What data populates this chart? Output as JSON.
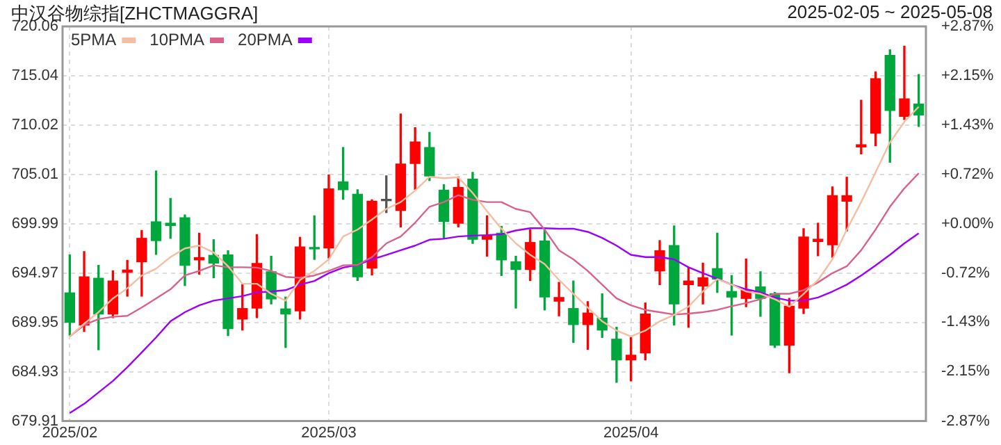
{
  "chart_data": {
    "type": "candlestick",
    "title": "中汉谷物综指[ZHCTMAGGRA]",
    "subtitle": "2025-02-05 ~ 2025-05-08",
    "categories": [
      "2025/02",
      null,
      null,
      null,
      null,
      null,
      null,
      null,
      null,
      null,
      null,
      null,
      null,
      null,
      null,
      null,
      null,
      null,
      "2025/03",
      null,
      null,
      null,
      null,
      null,
      null,
      null,
      null,
      null,
      null,
      null,
      null,
      null,
      null,
      null,
      null,
      null,
      null,
      null,
      null,
      "2025/04",
      null,
      null,
      null,
      null,
      null,
      null,
      null,
      null,
      null,
      null,
      null,
      null,
      null,
      null,
      null,
      null,
      null,
      null,
      null,
      null
    ],
    "ohlc": [
      [
        692.95,
        696.82,
        688.66,
        689.96
      ],
      [
        689.68,
        697.15,
        689.03,
        694.58
      ],
      [
        694.44,
        695.75,
        687.17,
        690.8
      ],
      [
        690.8,
        695.19,
        690.43,
        694.16
      ],
      [
        695.05,
        696.26,
        692.62,
        695.28
      ],
      [
        696.12,
        699.3,
        692.62,
        698.5
      ],
      [
        700.18,
        705.36,
        696.87,
        698.27
      ],
      [
        700.04,
        702.56,
        698.5,
        699.81
      ],
      [
        700.6,
        700.88,
        693.7,
        695.75
      ],
      [
        696.31,
        699.02,
        694.86,
        696.54
      ],
      [
        696.77,
        698.36,
        694.49,
        695.98
      ],
      [
        696.82,
        697.24,
        688.61,
        689.31
      ],
      [
        690.29,
        693.79,
        689.17,
        691.36
      ],
      [
        691.41,
        698.88,
        690.43,
        695.94
      ],
      [
        695.1,
        696.68,
        691.83,
        692.34
      ],
      [
        691.32,
        692.53,
        687.4,
        690.8
      ],
      [
        691.13,
        698.6,
        690.29,
        697.62
      ],
      [
        697.57,
        700.79,
        696.36,
        697.43
      ],
      [
        697.52,
        704.94,
        696.5,
        703.54
      ],
      [
        704.24,
        707.74,
        702.47,
        703.45
      ],
      [
        702.98,
        703.45,
        694.21,
        694.58
      ],
      [
        695.47,
        702.42,
        694.77,
        702.28
      ],
      [
        702.33,
        704.85,
        701.12,
        702.33
      ],
      [
        701.35,
        711.15,
        699.67,
        706.06
      ],
      [
        706.11,
        709.75,
        703.5,
        708.3
      ],
      [
        707.74,
        709.28,
        704.38,
        704.85
      ],
      [
        703.4,
        703.96,
        698.46,
        700.23
      ],
      [
        700.04,
        704.76,
        699.67,
        703.68
      ],
      [
        704.52,
        705.22,
        697.99,
        698.41
      ],
      [
        698.41,
        700.79,
        696.68,
        698.78
      ],
      [
        699.02,
        699.72,
        694.72,
        696.31
      ],
      [
        696.12,
        696.68,
        691.41,
        695.33
      ],
      [
        695.33,
        699.39,
        694.21,
        698.08
      ],
      [
        698.22,
        699.53,
        691.22,
        692.53
      ],
      [
        692.11,
        694.02,
        690.62,
        692.48
      ],
      [
        691.36,
        694.16,
        687.91,
        689.73
      ],
      [
        689.73,
        692.06,
        687.21,
        690.9
      ],
      [
        690.38,
        692.86,
        688.42,
        689.17
      ],
      [
        688.24,
        689.45,
        683.85,
        686.14
      ],
      [
        686.14,
        688.42,
        683.99,
        686.61
      ],
      [
        686.84,
        691.92,
        686.14,
        690.8
      ],
      [
        695.19,
        698.27,
        693.79,
        697.24
      ],
      [
        697.76,
        699.76,
        689.68,
        691.83
      ],
      [
        693.79,
        695.52,
        689.45,
        694.16
      ],
      [
        693.65,
        695.98,
        691.83,
        694.49
      ],
      [
        695.42,
        699.02,
        693.0,
        694.35
      ],
      [
        693.09,
        694.72,
        688.66,
        692.53
      ],
      [
        692.39,
        696.4,
        691.55,
        693.23
      ],
      [
        693.56,
        695.1,
        690.57,
        692.39
      ],
      [
        692.86,
        693.0,
        687.4,
        687.63
      ],
      [
        687.63,
        692.39,
        684.83,
        691.6
      ],
      [
        691.41,
        699.48,
        690.85,
        698.64
      ],
      [
        698.18,
        700.04,
        696.73,
        698.41
      ],
      [
        697.85,
        703.73,
        696.59,
        702.84
      ],
      [
        702.28,
        704.71,
        699.25,
        702.84
      ],
      [
        707.79,
        712.55,
        707.09,
        708.02
      ],
      [
        709.19,
        715.44,
        707.93,
        714.74
      ],
      [
        717.12,
        717.68,
        706.25,
        711.52
      ],
      [
        710.91,
        718.05,
        710.59,
        712.69
      ],
      [
        712.17,
        715.16,
        709.89,
        711.05
      ]
    ],
    "colors": [
      "#00a73c",
      "#ff0000",
      "#00a73c",
      "#ff0000",
      "#ff0000",
      "#ff0000",
      "#00a73c",
      "#00a73c",
      "#00a73c",
      "#ff0000",
      "#00a73c",
      "#00a73c",
      "#ff0000",
      "#ff0000",
      "#00a73c",
      "#00a73c",
      "#ff0000",
      "#00a73c",
      "#ff0000",
      "#00a73c",
      "#00a73c",
      "#ff0000",
      "#555555",
      "#ff0000",
      "#ff0000",
      "#00a73c",
      "#00a73c",
      "#ff0000",
      "#00a73c",
      "#ff0000",
      "#00a73c",
      "#00a73c",
      "#ff0000",
      "#00a73c",
      "#ff0000",
      "#00a73c",
      "#ff0000",
      "#00a73c",
      "#00a73c",
      "#ff0000",
      "#ff0000",
      "#ff0000",
      "#00a73c",
      "#ff0000",
      "#ff0000",
      "#00a73c",
      "#00a73c",
      "#ff0000",
      "#00a73c",
      "#00a73c",
      "#ff0000",
      "#ff0000",
      "#ff0000",
      "#ff0000",
      "#ff0000",
      "#ff0000",
      "#ff0000",
      "#00a73c",
      "#ff0000",
      "#00a73c"
    ],
    "series": [
      {
        "type": "line",
        "name": "5PMA",
        "color": "#f5bea0",
        "values": [
          688.52,
          689.82,
          690.99,
          692.39,
          693.42,
          694.72,
          695.42,
          696.59,
          697.48,
          697.76,
          697.06,
          695.66,
          693.88,
          693.88,
          692.86,
          692.16,
          694.26,
          695.19,
          696.36,
          698.69,
          699.39,
          700.42,
          701.49,
          702.19,
          703.36,
          704.76,
          704.62,
          704.71,
          703.12,
          701.26,
          699.48,
          697.99,
          696.82,
          695.89,
          694.26,
          692.86,
          691.46,
          690.06,
          689.12,
          688.52,
          689.12,
          690.06,
          690.71,
          691.55,
          693.09,
          694.35,
          693.79,
          693.09,
          692.86,
          692.3,
          691.55,
          692.86,
          694.26,
          696.36,
          699.39,
          702.19,
          705.22,
          708.26,
          710.35,
          711.89
        ]
      },
      {
        "type": "line",
        "name": "10PMA",
        "color": "#d9628a",
        "values": [
          688.52,
          689.68,
          690.29,
          690.52,
          690.62,
          691.46,
          692.39,
          693.32,
          694.72,
          695.19,
          695.75,
          695.56,
          695.56,
          695.52,
          695.19,
          694.58,
          694.49,
          694.72,
          695.19,
          695.75,
          695.8,
          696.59,
          697.99,
          698.69,
          700.09,
          701.72,
          702.19,
          702.89,
          702.42,
          702.19,
          702.19,
          701.49,
          701.16,
          699.39,
          697.29,
          696.36,
          695.19,
          693.79,
          692.39,
          691.69,
          691.22,
          690.99,
          690.75,
          690.85,
          690.99,
          691.22,
          691.6,
          691.92,
          692.3,
          692.86,
          692.86,
          693.23,
          694.02,
          694.96,
          695.66,
          697.29,
          699.39,
          701.72,
          703.59,
          705.13
        ]
      },
      {
        "type": "line",
        "name": "20PMA",
        "color": "#9b00ff",
        "values": [
          680.73,
          681.66,
          682.83,
          683.99,
          685.39,
          686.89,
          688.42,
          690.06,
          690.99,
          691.69,
          692.16,
          692.39,
          692.62,
          693.0,
          693.09,
          693.23,
          693.79,
          694.16,
          694.96,
          695.52,
          695.8,
          696.36,
          696.82,
          697.29,
          697.76,
          698.36,
          698.46,
          698.69,
          698.78,
          698.83,
          698.92,
          699.3,
          699.53,
          699.53,
          699.48,
          699.48,
          699.16,
          698.55,
          697.76,
          696.82,
          696.59,
          696.59,
          696.36,
          695.56,
          694.96,
          694.4,
          693.79,
          693.32,
          693.0,
          692.48,
          692.16,
          692.16,
          692.48,
          693.09,
          693.79,
          694.72,
          695.75,
          696.82,
          697.99,
          699.02
        ]
      }
    ],
    "ylim": [
      679.91,
      720.06
    ],
    "yticks": [
      679.91,
      684.93,
      689.95,
      694.97,
      699.99,
      705.01,
      710.02,
      715.04,
      720.06
    ],
    "y2lim": [
      -2.87,
      2.87
    ],
    "y2ticks": [
      {
        "value": -2.87,
        "label": "-2.87%"
      },
      {
        "value": -2.15,
        "label": "-2.15%"
      },
      {
        "value": -1.43,
        "label": "-1.43%"
      },
      {
        "value": -0.72,
        "label": "-0.72%"
      },
      {
        "value": 0,
        "label": "+0.00%"
      },
      {
        "value": 0.72,
        "label": "+0.72%"
      },
      {
        "value": 1.43,
        "label": "+1.43%"
      },
      {
        "value": 2.15,
        "label": "+2.15%"
      },
      {
        "value": 2.87,
        "label": "+2.87%"
      }
    ],
    "grid": true,
    "legend": "top left"
  }
}
